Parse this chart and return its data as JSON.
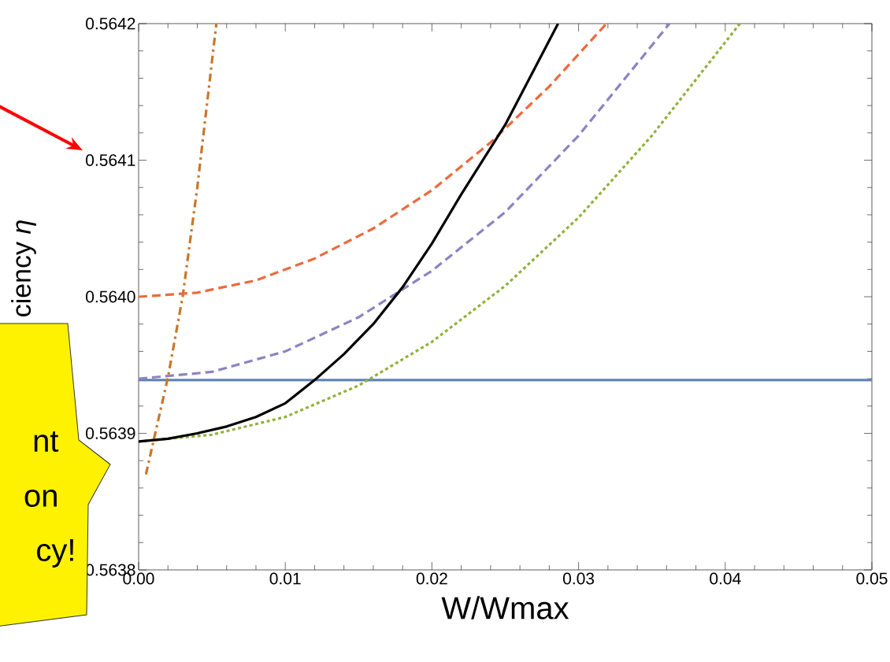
{
  "chart_data": {
    "type": "line",
    "xlabel": "W/Wmax",
    "ylabel": "ciency *η*",
    "xlim": [
      0,
      0.05
    ],
    "ylim": [
      0.5638,
      0.5642
    ],
    "xticks": [
      {
        "value": 0,
        "label": "0.00"
      },
      {
        "value": 0.01,
        "label": "0.01"
      },
      {
        "value": 0.02,
        "label": "0.02"
      },
      {
        "value": 0.03,
        "label": "0.03"
      },
      {
        "value": 0.04,
        "label": "0.04"
      },
      {
        "value": 0.05,
        "label": "0.05"
      }
    ],
    "yticks": [
      0.5638,
      0.5639,
      {
        "value": 0.564,
        "label": "0.5640"
      },
      0.5641,
      0.5642
    ],
    "annotations": [
      "nt",
      "on",
      "cy!"
    ],
    "series": [
      {
        "color": "#5e81b5",
        "line_style": "solid",
        "x": [
          0,
          0.05
        ],
        "values": [
          0.563939,
          0.563939
        ]
      },
      {
        "color": "#c8772a",
        "line_style": "dashdotted",
        "x": [
          0.0005,
          0.002,
          0.003,
          0.004,
          0.0053
        ],
        "values": [
          0.56387,
          0.563941,
          0.564,
          0.56408,
          0.5642
        ]
      },
      {
        "color": "#ec6a3d",
        "line_style": "dashed",
        "x": [
          0,
          0.004,
          0.008,
          0.012,
          0.016,
          0.02,
          0.024,
          0.028,
          0.0319
        ],
        "values": [
          0.564,
          0.564003,
          0.564012,
          0.564028,
          0.56405,
          0.564078,
          0.564113,
          0.564154,
          0.5642
        ]
      },
      {
        "color": "#8f82c2",
        "line_style": "dashed",
        "x": [
          0,
          0.005,
          0.01,
          0.015,
          0.02,
          0.025,
          0.03,
          0.0362
        ],
        "values": [
          0.56394,
          0.563945,
          0.56396,
          0.563985,
          0.564019,
          0.564062,
          0.564118,
          0.5642
        ]
      },
      {
        "color": "#8fb23a",
        "line_style": "dotted",
        "x": [
          0,
          0.005,
          0.01,
          0.015,
          0.02,
          0.025,
          0.03,
          0.035,
          0.041
        ],
        "values": [
          0.563894,
          0.563899,
          0.563912,
          0.563935,
          0.563967,
          0.564008,
          0.564058,
          0.564118,
          0.5642
        ]
      },
      {
        "color": "#000000",
        "line_style": "solid",
        "x": [
          0,
          0.002,
          0.004,
          0.006,
          0.008,
          0.01,
          0.012,
          0.014,
          0.016,
          0.018,
          0.02,
          0.022,
          0.025,
          0.0286
        ],
        "values": [
          0.563894,
          0.563896,
          0.5639,
          0.563905,
          0.563912,
          0.563922,
          0.563939,
          0.563958,
          0.56398,
          0.564007,
          0.564039,
          0.564075,
          0.564126,
          0.5642
        ]
      }
    ]
  }
}
